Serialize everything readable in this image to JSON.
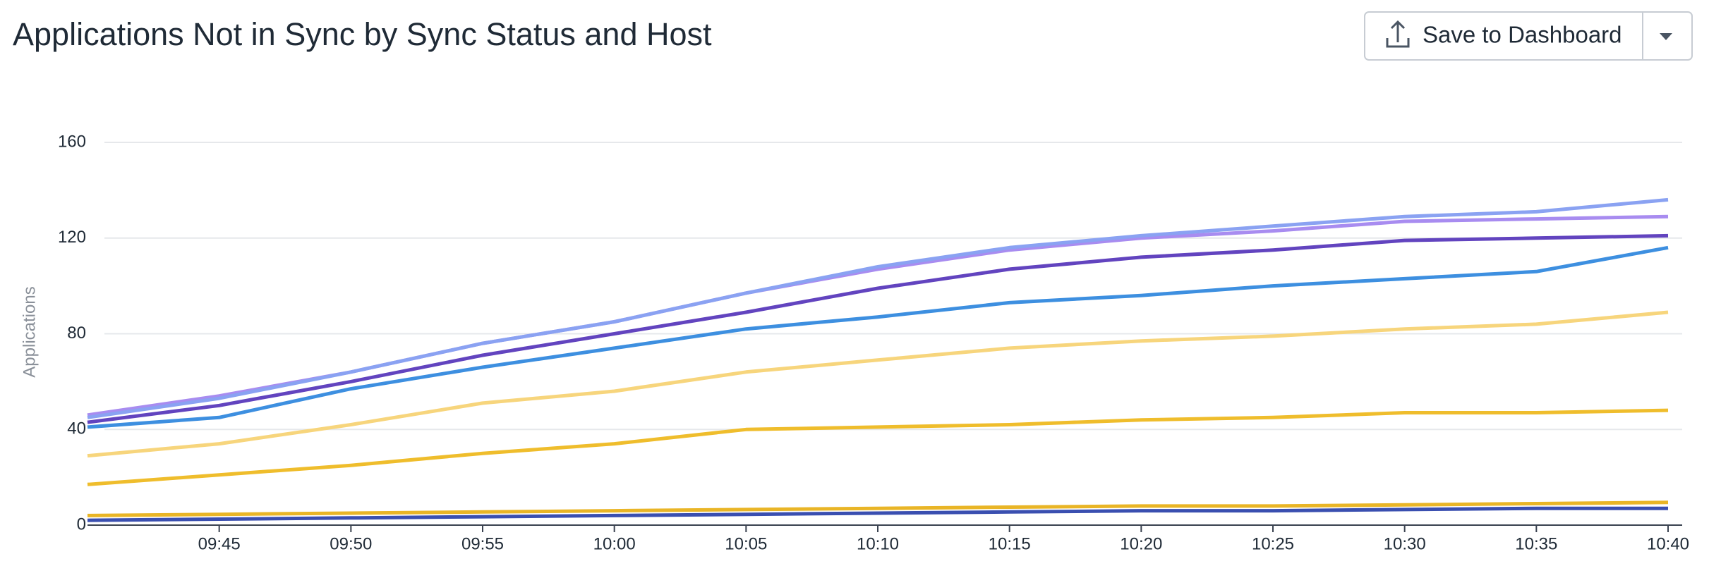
{
  "toolbar": {
    "button": "Save to Dashboard"
  },
  "chart_data": {
    "type": "line",
    "title": "Applications Not in Sync by Sync Status and Host",
    "y_label": "Applications",
    "x": [
      "09:40",
      "09:45",
      "09:50",
      "09:55",
      "10:00",
      "10:05",
      "10:10",
      "10:15",
      "10:20",
      "10:25",
      "10:30",
      "10:35",
      "10:40"
    ],
    "xlim": [
      "09:40",
      "10:40"
    ],
    "xticks": [
      "09:45",
      "09:50",
      "09:55",
      "10:00",
      "10:05",
      "10:10",
      "10:15",
      "10:20",
      "10:25",
      "10:30",
      "10:35",
      "10:40"
    ],
    "ylim": [
      0,
      160
    ],
    "yticks": [
      0,
      40,
      80,
      120,
      160
    ],
    "grid": true,
    "series": [
      {
        "color": "#8aa2f2",
        "values": [
          45,
          53,
          64,
          76,
          85,
          97,
          108,
          116,
          121,
          125,
          129,
          131,
          136
        ]
      },
      {
        "color": "#a88cf0",
        "values": [
          46,
          54,
          64,
          76,
          85,
          97,
          107,
          115,
          120,
          123,
          127,
          128,
          129
        ]
      },
      {
        "color": "#6244bf",
        "values": [
          43,
          50,
          60,
          71,
          80,
          89,
          99,
          107,
          112,
          115,
          119,
          120,
          121
        ]
      },
      {
        "color": "#3d8fe0",
        "values": [
          41,
          45,
          57,
          66,
          74,
          82,
          87,
          93,
          96,
          100,
          103,
          106,
          116
        ]
      },
      {
        "color": "#f7d57c",
        "values": [
          29,
          34,
          42,
          51,
          56,
          64,
          69,
          74,
          77,
          79,
          82,
          84,
          89
        ]
      },
      {
        "color": "#efbd2c",
        "values": [
          17,
          21,
          25,
          30,
          34,
          40,
          41,
          42,
          44,
          45,
          47,
          47,
          48
        ]
      },
      {
        "color": "#e9b526",
        "values": [
          4,
          4.5,
          5,
          5.5,
          6,
          6.5,
          7,
          7.5,
          8,
          8,
          8.5,
          9,
          9.5
        ]
      },
      {
        "color": "#3a4fb0",
        "values": [
          2,
          2.5,
          3,
          3.5,
          4,
          4.5,
          5,
          5.5,
          6,
          6,
          6.5,
          7,
          7
        ]
      }
    ]
  }
}
